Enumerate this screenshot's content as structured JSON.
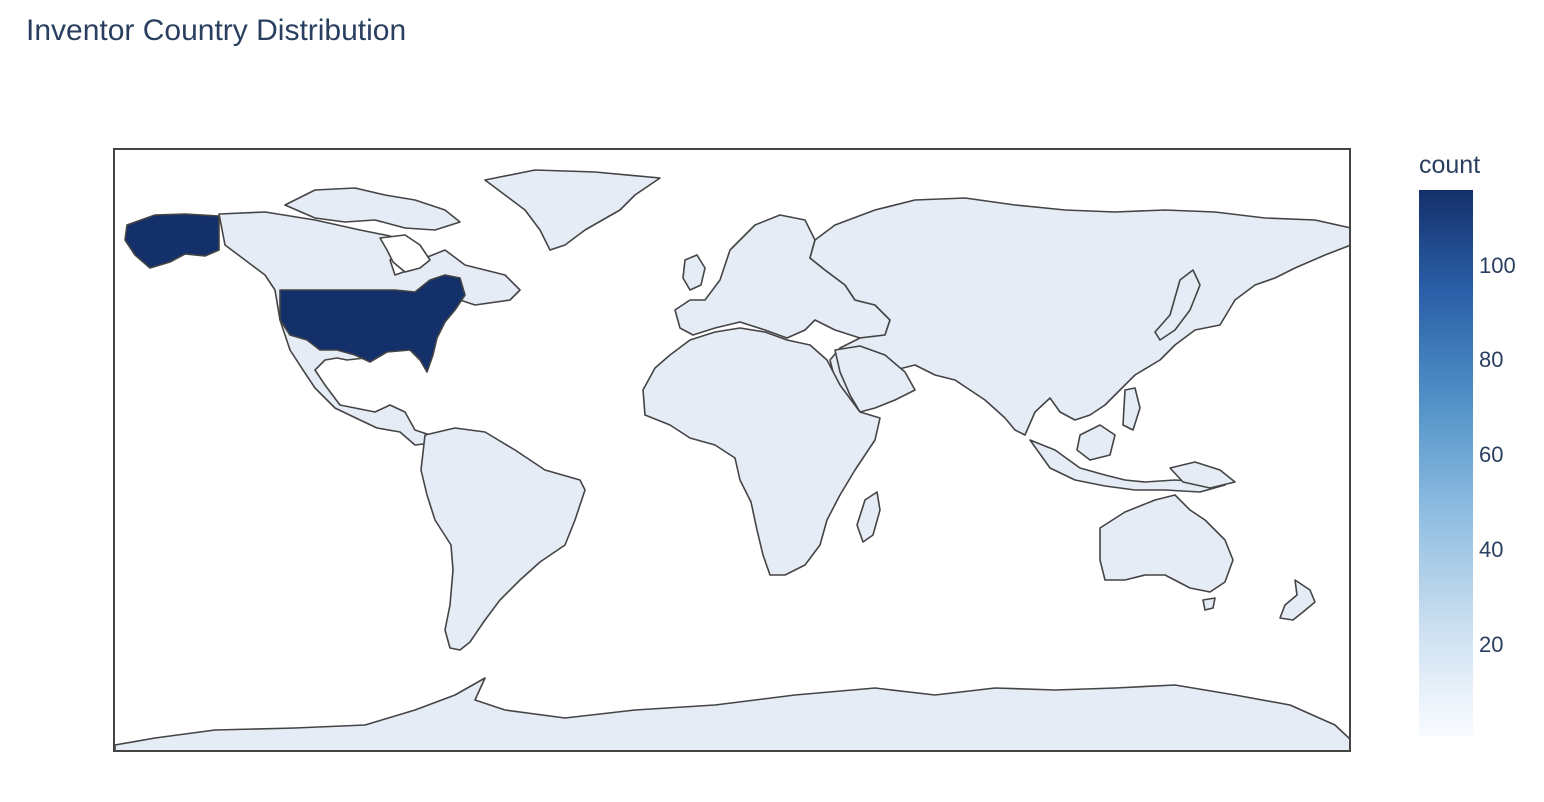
{
  "title": "Inventor Country Distribution",
  "colorbar": {
    "title": "count",
    "ticks": [
      "100",
      "80",
      "60",
      "40",
      "20"
    ],
    "range": [
      1,
      116
    ],
    "colorscale": [
      "#f7fbff",
      "#c6dcef",
      "#6baed6",
      "#2a5ea7",
      "#14306b"
    ]
  },
  "map_data": {
    "type": "choropleth",
    "projection": "equirectangular",
    "locations": [
      {
        "country": "United States",
        "count": 116,
        "color": "#14306b"
      }
    ],
    "other_countries_color": "#e5ecf6",
    "border_color": "#444444",
    "ocean_color": "#ffffff"
  }
}
